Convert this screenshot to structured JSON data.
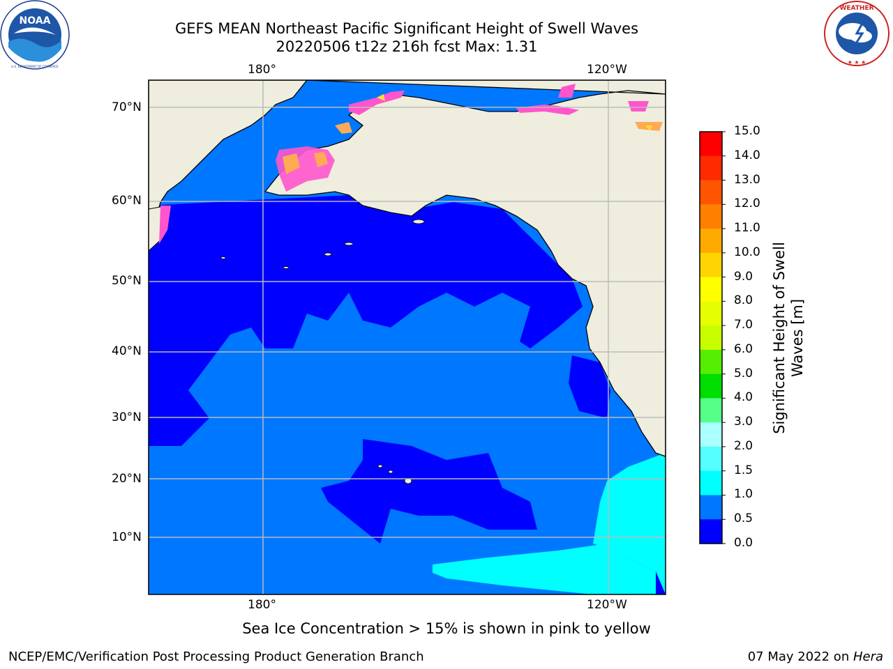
{
  "title": {
    "line1": "GEFS MEAN Northeast Pacific Significant Height of Swell Waves",
    "line2": "20220506 t12z 216h fcst   Max: 1.31"
  },
  "logos": {
    "left": {
      "name": "noaa-logo",
      "text": "NOAA",
      "ring_text": "NATIONAL OCEANIC AND ATMOSPHERIC ADMINISTRATION · U.S. DEPARTMENT OF COMMERCE"
    },
    "right": {
      "name": "nws-logo",
      "ring_text": "NATIONAL WEATHER SERVICE"
    }
  },
  "map": {
    "lon_labels_top": [
      "180°",
      "120°W"
    ],
    "lon_labels_bottom": [
      "180°",
      "120°W"
    ],
    "lat_labels": [
      "70°N",
      "60°N",
      "50°N",
      "40°N",
      "30°N",
      "20°N",
      "10°N"
    ],
    "colors": {
      "land": "#efedde",
      "ocean_low": "#0000ff",
      "ocean_mid": "#0077ff",
      "ocean_high": "#00ffff",
      "ice_pink": "#ff55cc",
      "ice_orange": "#ffaa55",
      "ice_yellow": "#ffdd33",
      "gridline": "#bbbbbb",
      "coast": "#000000"
    }
  },
  "colorbar": {
    "title_line1": "Significant Height of Swell",
    "title_line2": "Waves [m]",
    "ticks": [
      "15.0",
      "14.0",
      "13.0",
      "12.0",
      "11.0",
      "10.0",
      "9.0",
      "8.0",
      "7.0",
      "6.0",
      "5.0",
      "4.0",
      "3.0",
      "2.0",
      "1.5",
      "1.0",
      "0.5",
      "0.0"
    ],
    "bins": [
      {
        "range": "14.0-15.0",
        "color": "#ff0000"
      },
      {
        "range": "13.0-14.0",
        "color": "#ff2a00"
      },
      {
        "range": "12.0-13.0",
        "color": "#ff5500"
      },
      {
        "range": "11.0-12.0",
        "color": "#ff8000"
      },
      {
        "range": "10.0-11.0",
        "color": "#ffaa00"
      },
      {
        "range": "9.0-10.0",
        "color": "#ffd400"
      },
      {
        "range": "8.0-9.0",
        "color": "#ffff00"
      },
      {
        "range": "7.0-8.0",
        "color": "#e6ff00"
      },
      {
        "range": "6.0-7.0",
        "color": "#c8ff00"
      },
      {
        "range": "5.0-6.0",
        "color": "#55ee00"
      },
      {
        "range": "4.0-5.0",
        "color": "#00dd00"
      },
      {
        "range": "3.0-4.0",
        "color": "#55ff88"
      },
      {
        "range": "2.0-3.0",
        "color": "#aaffff"
      },
      {
        "range": "1.5-2.0",
        "color": "#55ffff"
      },
      {
        "range": "1.0-1.5",
        "color": "#00ffff"
      },
      {
        "range": "0.5-1.0",
        "color": "#0077ff"
      },
      {
        "range": "0.0-0.5",
        "color": "#0000ff"
      }
    ]
  },
  "note": "Sea Ice Concentration > 15% is shown in pink to yellow",
  "footer": {
    "left": "NCEP/EMC/Verification Post Processing Product Generation Branch",
    "right_date": "07 May 2022 on ",
    "right_host": "Hera"
  }
}
